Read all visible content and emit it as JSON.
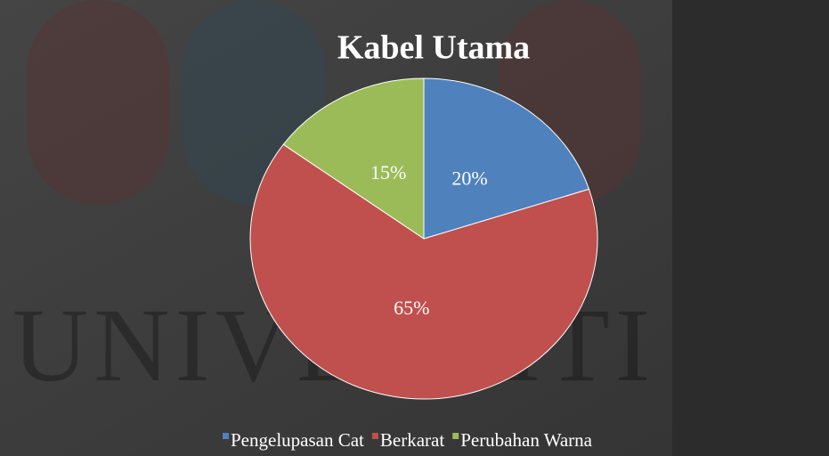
{
  "chart_data": {
    "type": "pie",
    "title": "Kabel Utama",
    "watermark": "UNIVERSITI",
    "categories": [
      "Pengelupasan Cat",
      "Berkarat",
      "Perubahan Warna"
    ],
    "values": [
      20,
      65,
      15
    ],
    "value_labels": [
      "20%",
      "65%",
      "15%"
    ],
    "colors": [
      "#4f81bd",
      "#c0504d",
      "#9bbb59"
    ],
    "legend": "bottom"
  }
}
